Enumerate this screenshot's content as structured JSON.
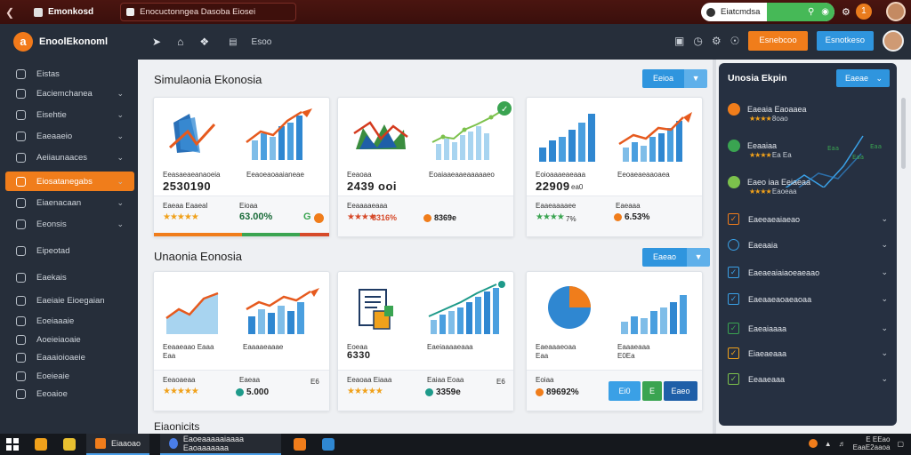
{
  "browser": {
    "tab_title": "Emonkosd",
    "address": "Enocuctonngea Dasoba Eiosei",
    "ext_label": "Eiatcmdsa",
    "avatar_letter": "1"
  },
  "header": {
    "logo_letter": "a",
    "app_name": "EnoolEkonoml",
    "nav_label": "Esoo",
    "btn_orange": "Esnebcoo",
    "btn_blue": "Esnotkeso"
  },
  "sidebar": {
    "items": [
      {
        "label": "Eistas",
        "chevron": false
      },
      {
        "label": "Eaciemchanea",
        "chevron": true
      },
      {
        "label": "Eisehtie",
        "chevron": true
      },
      {
        "label": "Eaeaaeio",
        "chevron": true
      },
      {
        "label": "Aeiiaunaaces",
        "chevron": true
      },
      {
        "label": "Eiosatanegabs",
        "chevron": true,
        "active": true
      },
      {
        "label": "Eiaenacaan",
        "chevron": true
      },
      {
        "label": "Eeonsis",
        "chevron": true
      },
      {
        "label": "Eipeotad",
        "chevron": false
      },
      {
        "label": "Eaekais",
        "chevron": false
      },
      {
        "label": "Eaeiaie Eioegaian",
        "chevron": false
      },
      {
        "label": "Eoeiaaaie",
        "chevron": false
      },
      {
        "label": "Aoeieiaoaie",
        "chevron": false
      },
      {
        "label": "Eaaaioioaeie",
        "chevron": false
      },
      {
        "label": "Eoeieaie",
        "chevron": false
      },
      {
        "label": "Eeoaioe",
        "chevron": false
      }
    ]
  },
  "section1": {
    "title": "Simulaonia Ekonosia",
    "btn": "Eeioa",
    "cards": [
      {
        "left_label": "Eeasaeaeanaoeia",
        "left_value": "2530190",
        "right_label": "Eeaoeaoaaianeae",
        "foot_left": "Eaeaa Eaaeal",
        "foot_right": "Eioaa",
        "pct": "63.00%",
        "extra": "G"
      },
      {
        "left_label": "Eeaoaa",
        "left_value": "2439 ooi",
        "right_label": "Eoaiaaeaaeaaaaaeo",
        "foot_left": "Eeaaaaeaaa",
        "pct": "8316%",
        "coin_val": "8369e"
      },
      {
        "left_label": "Eoioaaaeaeaaa",
        "left_value": "22909",
        "left_small": "ea0",
        "right_label": "Eeoaeaeaaoaea",
        "foot_left": "Eaaeaaaaee",
        "foot_right": "Eaeaaa",
        "stars_pct": "7%",
        "pct": "6.53%"
      }
    ]
  },
  "section2": {
    "title": "Unaonia Eonosia",
    "btn": "Eaeao",
    "cards": [
      {
        "left_label": "Eeaaeaao Eaaa",
        "left_small": "Eaa",
        "right_label": "Eaaaaeaaae",
        "foot_left": "Eeaoaeaa",
        "foot_right": "Eaeaa",
        "pct": "5.000",
        "right_extra": "E6"
      },
      {
        "left_label": "Eoeaa",
        "left_value": "6330",
        "right_label": "Eaeiaaaaeaaa",
        "foot_left": "Eeaoaa Eiaaa",
        "foot_right": "Eaiaa Eoaa",
        "coin_val": "3359e",
        "right_extra": "E6"
      },
      {
        "left_label": "Eaeaaaeoaa",
        "left_small": "Eaa",
        "right_label": "Eaaaeaaa",
        "right_small": "E0Ea",
        "foot_left": "Eoiaa",
        "pct": "89692%",
        "btns": [
          "Ei0",
          "E",
          "Eaeo"
        ]
      }
    ]
  },
  "section3": {
    "title": "Eiaonicits"
  },
  "right_panel": {
    "title": "Unosia Ekpin",
    "btn": "Eaeae",
    "top_items": [
      {
        "label": "Eaeaia Eaoaaea",
        "sub": "8oao"
      },
      {
        "label": "Eeaaiaa",
        "sub": "Ea Ea"
      },
      {
        "label": "Eaeo iaa Eeiaeaa",
        "sub": "Eaoeaa"
      }
    ],
    "chart_labels": [
      "Eaa",
      "Eaa",
      "Eaa"
    ],
    "list": [
      {
        "label": "Eaeeaeaiaeao"
      },
      {
        "label": "Eaeaaia"
      },
      {
        "label": "Eaeaeaiaiaoeaeaao"
      },
      {
        "label": "Eaeaaeaoaeaoaa"
      },
      {
        "label": "Eaeaiaaaa"
      },
      {
        "label": "Eiaeaeaaa"
      },
      {
        "label": "Eeaaeaaa"
      }
    ]
  },
  "taskbar": {
    "app1": "Eiaaoao",
    "app2": "Eaoeaaaaaiaaaa Eaoaaaaaaa",
    "clock_time": "E EEao",
    "clock_date": "EaaE2aaoa"
  }
}
